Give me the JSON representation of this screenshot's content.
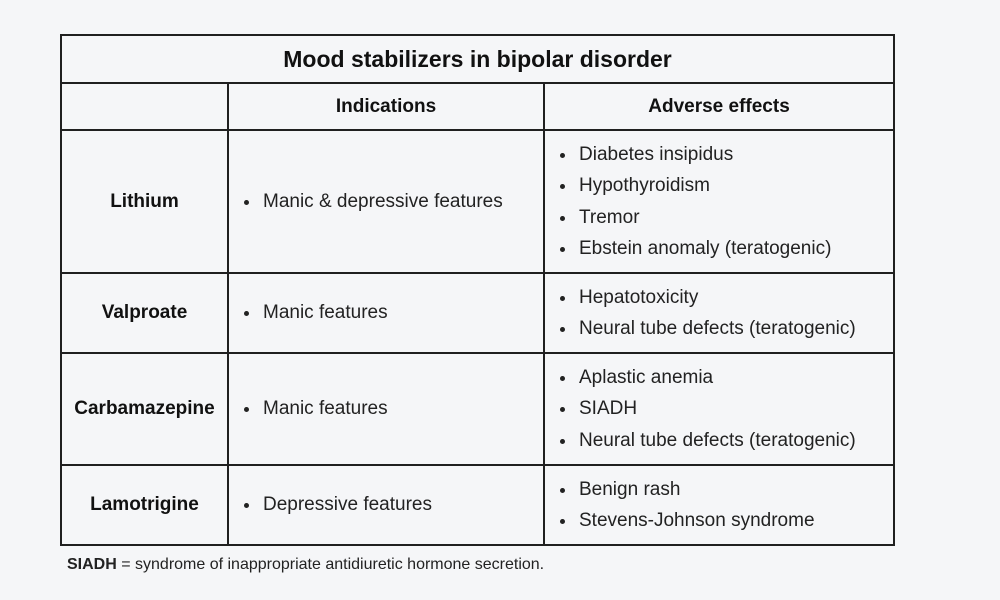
{
  "table": {
    "title": "Mood stabilizers in bipolar disorder",
    "headers": [
      "",
      "Indications",
      "Adverse effects"
    ],
    "rows": [
      {
        "drug": "Lithium",
        "indications": [
          "Manic & depressive features"
        ],
        "adverse_effects": [
          "Diabetes insipidus",
          "Hypothyroidism",
          "Tremor",
          "Ebstein anomaly (teratogenic)"
        ]
      },
      {
        "drug": "Valproate",
        "indications": [
          "Manic features"
        ],
        "adverse_effects": [
          "Hepatotoxicity",
          "Neural tube defects (teratogenic)"
        ]
      },
      {
        "drug": "Carbamazepine",
        "indications": [
          "Manic features"
        ],
        "adverse_effects": [
          "Aplastic anemia",
          "SIADH",
          "Neural tube defects (teratogenic)"
        ]
      },
      {
        "drug": "Lamotrigine",
        "indications": [
          "Depressive features"
        ],
        "adverse_effects": [
          "Benign rash",
          "Stevens-Johnson syndrome"
        ]
      }
    ]
  },
  "footnote": {
    "term": "SIADH",
    "definition": " = syndrome of inappropriate antidiuretic hormone secretion."
  }
}
